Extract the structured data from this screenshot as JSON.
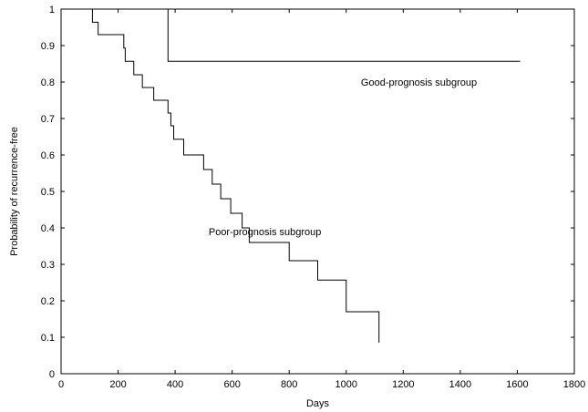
{
  "chart_data": {
    "type": "line",
    "step": true,
    "xlabel": "Days",
    "ylabel": "Probability of recurrence-free",
    "xlim": [
      0,
      1800
    ],
    "ylim": [
      0,
      1
    ],
    "xticks": [
      0,
      200,
      400,
      600,
      800,
      1000,
      1200,
      1400,
      1600,
      1800
    ],
    "yticks": [
      0,
      0.1,
      0.2,
      0.3,
      0.4,
      0.5,
      0.6,
      0.7,
      0.8,
      0.9,
      1
    ],
    "xtick_labels": [
      "0",
      "200",
      "400",
      "600",
      "800",
      "1000",
      "1200",
      "1400",
      "1600",
      "1800"
    ],
    "ytick_labels": [
      "0",
      "0.1",
      "0.2",
      "0.3",
      "0.4",
      "0.5",
      "0.6",
      "0.7",
      "0.8",
      "0.9",
      "1"
    ],
    "grid": false,
    "series": [
      {
        "name": "Good-prognosis subgroup",
        "x": [
          0,
          375,
          1610
        ],
        "y": [
          1,
          0.857,
          0.857
        ]
      },
      {
        "name": "Poor-prognosis subgroup",
        "x": [
          0,
          110,
          130,
          220,
          225,
          255,
          285,
          325,
          375,
          385,
          395,
          430,
          500,
          530,
          560,
          595,
          635,
          660,
          800,
          900,
          1000,
          1115
        ],
        "y": [
          1,
          0.964,
          0.93,
          0.893,
          0.857,
          0.82,
          0.785,
          0.75,
          0.715,
          0.68,
          0.643,
          0.6,
          0.56,
          0.52,
          0.48,
          0.44,
          0.4,
          0.36,
          0.31,
          0.257,
          0.17,
          0.085
        ]
      }
    ],
    "annotations": [
      {
        "text": "Good-prognosis subgroup",
        "x": 1255,
        "y": 0.8
      },
      {
        "text": "Poor-prognosis subgroup",
        "x": 715,
        "y": 0.39
      }
    ]
  }
}
